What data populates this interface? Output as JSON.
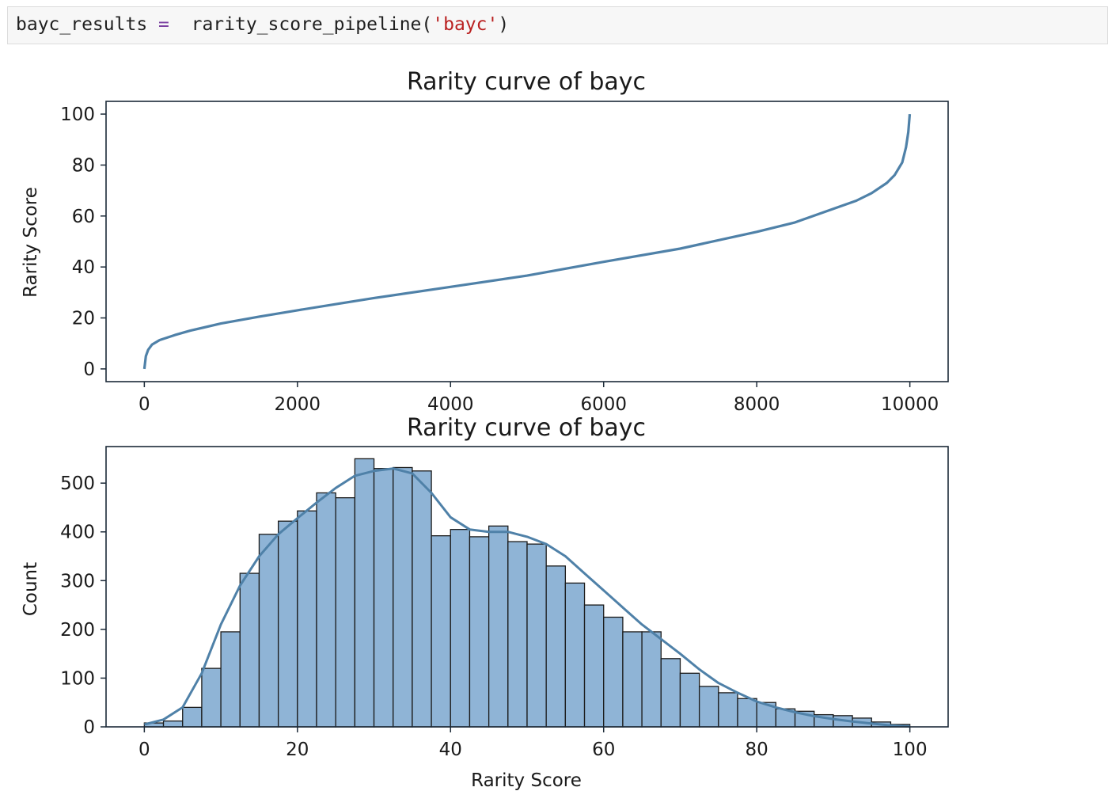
{
  "code_cell": {
    "variable": "bayc_results",
    "operator": "=",
    "function_name": "rarity_score_pipeline",
    "argument": "'bayc'"
  },
  "colors": {
    "line": "#4f81a8",
    "bar_fill": "#8fb4d6",
    "bar_edge": "#1a1a1a",
    "kde": "#4f81a8",
    "axes": "#1c2a38"
  },
  "chart_data": [
    {
      "type": "line",
      "title": "Rarity curve of bayc",
      "xlabel": "",
      "ylabel": "Rarity Score",
      "xlim": [
        -500,
        10500
      ],
      "ylim": [
        -5,
        105
      ],
      "x_ticks": [
        0,
        2000,
        4000,
        6000,
        8000,
        10000
      ],
      "y_ticks": [
        0,
        20,
        40,
        60,
        80,
        100
      ],
      "grid": false,
      "series": [
        {
          "x": [
            0,
            20,
            50,
            100,
            200,
            400,
            600,
            1000,
            1500,
            2000,
            3000,
            4000,
            5000,
            6000,
            7000,
            8000,
            8500,
            9000,
            9300,
            9500,
            9700,
            9800,
            9900,
            9950,
            9980,
            9999
          ],
          "values": [
            0,
            5,
            7.5,
            9.5,
            11.3,
            13.3,
            15,
            17.8,
            20.5,
            23,
            27.8,
            32.2,
            36.6,
            42,
            47.2,
            53.8,
            57.5,
            62.8,
            66,
            69,
            73,
            76,
            81,
            87,
            93,
            100
          ]
        }
      ]
    },
    {
      "type": "bar",
      "title": "Rarity curve of bayc",
      "xlabel": "Rarity Score",
      "ylabel": "Count",
      "xlim": [
        -5,
        105
      ],
      "ylim": [
        0,
        575
      ],
      "x_ticks": [
        0,
        20,
        40,
        60,
        80,
        100
      ],
      "y_ticks": [
        0,
        100,
        200,
        300,
        400,
        500
      ],
      "grid": false,
      "bin_width": 2.5,
      "bin_edges_start": 0,
      "values": [
        8,
        12,
        40,
        120,
        195,
        315,
        395,
        422,
        443,
        480,
        470,
        550,
        530,
        532,
        525,
        392,
        405,
        390,
        412,
        380,
        375,
        330,
        295,
        250,
        225,
        195,
        195,
        140,
        110,
        83,
        70,
        58,
        50,
        37,
        32,
        25,
        23,
        18,
        10,
        5
      ],
      "kde": {
        "x": [
          0,
          2.5,
          5,
          7.5,
          10,
          12.5,
          15,
          17.5,
          20,
          22.5,
          25,
          27.5,
          30,
          32.5,
          35,
          37.5,
          40,
          42.5,
          45,
          47.5,
          50,
          52.5,
          55,
          57.5,
          60,
          62.5,
          65,
          67.5,
          70,
          72.5,
          75,
          77.5,
          80,
          82.5,
          85,
          87.5,
          90,
          92.5,
          95,
          97.5,
          100
        ],
        "values": [
          5,
          15,
          40,
          110,
          210,
          290,
          350,
          395,
          428,
          460,
          490,
          515,
          525,
          530,
          520,
          480,
          430,
          405,
          400,
          400,
          390,
          375,
          350,
          315,
          280,
          245,
          210,
          180,
          150,
          118,
          90,
          70,
          52,
          40,
          30,
          22,
          16,
          11,
          7,
          3,
          1
        ]
      }
    }
  ]
}
